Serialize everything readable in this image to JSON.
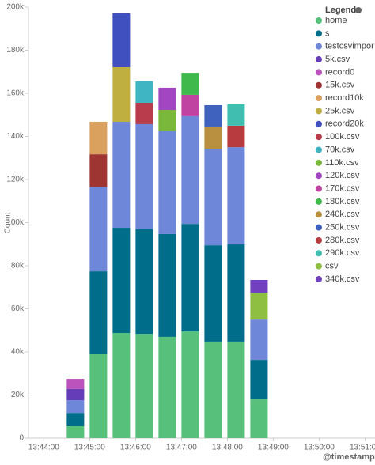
{
  "chart_data": {
    "type": "bar",
    "stacked": true,
    "ylabel": "Count",
    "xlabel": "@timestamp pe",
    "legend_title": "Legend",
    "legend": "right",
    "x": [
      "13:44:30",
      "13:45:00",
      "13:45:30",
      "13:46:00",
      "13:46:30",
      "13:47:00",
      "13:47:30",
      "13:48:00",
      "13:48:30"
    ],
    "xlim": [
      "13:43:40",
      "13:51:13"
    ],
    "xticks": [
      "13:44:00",
      "13:45:00",
      "13:46:00",
      "13:47:00",
      "13:48:00",
      "13:49:00",
      "13:50:00",
      "13:51:00"
    ],
    "ylim": [
      0,
      200000
    ],
    "yticks": [
      0,
      {
        "value": 20000,
        "label": "20k"
      },
      {
        "value": 40000,
        "label": "40k"
      },
      {
        "value": 60000,
        "label": "60k"
      },
      {
        "value": 80000,
        "label": "80k"
      },
      {
        "value": 100000,
        "label": "100k"
      },
      {
        "value": 120000,
        "label": "120k"
      },
      {
        "value": 140000,
        "label": "140k"
      },
      {
        "value": 160000,
        "label": "160k"
      },
      {
        "value": 180000,
        "label": "180k"
      },
      {
        "value": 200000,
        "label": "200k"
      }
    ],
    "grid": false,
    "series": [
      {
        "name": "home",
        "color": "#57c17b",
        "values": [
          5500,
          38900,
          48800,
          48400,
          47000,
          49500,
          44800,
          44800,
          18300
        ]
      },
      {
        "name": "s",
        "color": "#006e8a",
        "values": [
          6200,
          38500,
          48800,
          48500,
          47700,
          49900,
          44700,
          45100,
          18000
        ]
      },
      {
        "name": "testcsvimpor",
        "color": "#6f87d8",
        "values": [
          5900,
          39300,
          49200,
          48800,
          47700,
          50000,
          44800,
          45100,
          18700
        ]
      },
      {
        "name": "5k.csv",
        "color": "#663db8",
        "values": [
          5200,
          null,
          null,
          null,
          null,
          null,
          null,
          null,
          null
        ]
      },
      {
        "name": "record0",
        "color": "#bc52bc",
        "values": [
          4700,
          null,
          null,
          null,
          null,
          null,
          null,
          null,
          null
        ]
      },
      {
        "name": "15k.csv",
        "color": "#9e3533",
        "values": [
          null,
          15000,
          null,
          null,
          null,
          null,
          null,
          null,
          null
        ]
      },
      {
        "name": "record10k",
        "color": "#daa05d",
        "values": [
          null,
          15100,
          null,
          null,
          null,
          null,
          null,
          null,
          null
        ]
      },
      {
        "name": "25k.csv",
        "color": "#bfaf40",
        "values": [
          null,
          null,
          25300,
          null,
          null,
          null,
          null,
          null,
          null
        ]
      },
      {
        "name": "record20k",
        "color": "#4050bf",
        "values": [
          null,
          null,
          25000,
          null,
          null,
          null,
          null,
          null,
          null
        ]
      },
      {
        "name": "100k.csv",
        "color": "#b83c4b",
        "values": [
          null,
          null,
          null,
          9900,
          null,
          null,
          null,
          null,
          null
        ]
      },
      {
        "name": "70k.csv",
        "color": "#3fb5c3",
        "values": [
          null,
          null,
          null,
          9900,
          null,
          null,
          null,
          null,
          null
        ]
      },
      {
        "name": "110k.csv",
        "color": "#7ab83c",
        "values": [
          null,
          null,
          null,
          null,
          9900,
          null,
          null,
          null,
          null
        ]
      },
      {
        "name": "120k.csv",
        "color": "#a346c1",
        "values": [
          null,
          null,
          null,
          null,
          10300,
          null,
          null,
          null,
          null
        ]
      },
      {
        "name": "170k.csv",
        "color": "#c043a1",
        "values": [
          null,
          null,
          null,
          null,
          null,
          9900,
          null,
          null,
          null
        ]
      },
      {
        "name": "180k.csv",
        "color": "#3fb84c",
        "values": [
          null,
          null,
          null,
          null,
          null,
          10200,
          null,
          null,
          null
        ]
      },
      {
        "name": "240k.csv",
        "color": "#b8903f",
        "values": [
          null,
          null,
          null,
          null,
          null,
          null,
          10300,
          null,
          null
        ]
      },
      {
        "name": "250k.csv",
        "color": "#4062bf",
        "values": [
          null,
          null,
          null,
          null,
          null,
          null,
          9900,
          null,
          null
        ]
      },
      {
        "name": "280k.csv",
        "color": "#b83b3f",
        "values": [
          null,
          null,
          null,
          null,
          null,
          null,
          null,
          10000,
          null
        ]
      },
      {
        "name": "290k.csv",
        "color": "#40bfb0",
        "values": [
          null,
          null,
          null,
          null,
          null,
          null,
          null,
          9900,
          null
        ]
      },
      {
        "name": "csv",
        "color": "#8ebf40",
        "values": [
          null,
          null,
          null,
          null,
          null,
          null,
          null,
          null,
          12500
        ]
      },
      {
        "name": "340k.csv",
        "color": "#7040bf",
        "values": [
          null,
          null,
          null,
          null,
          null,
          null,
          null,
          null,
          5900
        ]
      }
    ]
  }
}
